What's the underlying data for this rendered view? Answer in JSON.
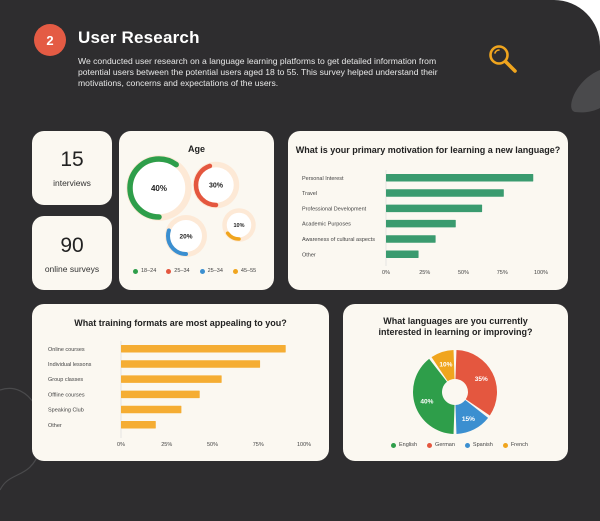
{
  "header": {
    "step": "2",
    "title": "User Research",
    "description": "We conducted user research on a language learning platforms to get detailed information from potential users between the potential users aged 18 to 55. This survey helped understand their motivations, concerns and expectations of the users."
  },
  "icons": {
    "research": "magnifier-icon"
  },
  "stats": {
    "interviews": {
      "value": "15",
      "label": "interviews"
    },
    "surveys": {
      "value": "90",
      "label": "online surveys"
    }
  },
  "age": {
    "title": "Age",
    "legend": [
      "18–24",
      "25–34",
      "25–34",
      "45–55"
    ],
    "bubbles": [
      {
        "label": "40%",
        "value": 40,
        "color": "#2e9e4a"
      },
      {
        "label": "30%",
        "value": 30,
        "color": "#e4573f"
      },
      {
        "label": "20%",
        "value": 20,
        "color": "#3b8fd0"
      },
      {
        "label": "10%",
        "value": 10,
        "color": "#f0a51e"
      }
    ]
  },
  "colors": {
    "green": "#2e9e4a",
    "red": "#e4573f",
    "blue": "#3b8fd0",
    "orange": "#f0a51e",
    "teal_bar": "#3a9b6f",
    "amber_bar": "#f5ad33",
    "background": "#2e2d2f",
    "card": "#fbf8f1"
  },
  "chart_data": [
    {
      "type": "bar",
      "title": "What is your primary motivation for learning a new language?",
      "categories": [
        "Personal Interest",
        "Travel",
        "Professional Development",
        "Academic Purposes",
        "Awareness of cultural aspects",
        "Other"
      ],
      "values": [
        95,
        76,
        62,
        45,
        32,
        21
      ],
      "xticks": [
        "0%",
        "25%",
        "50%",
        "75%",
        "100%"
      ],
      "xlim": [
        0,
        100
      ],
      "orientation": "horizontal"
    },
    {
      "type": "bar",
      "title": "What training formats are most appealing to you?",
      "categories": [
        "Online courses",
        "Individual lessons",
        "Group classes",
        "Offline courses",
        "Speaking Club",
        "Other"
      ],
      "values": [
        90,
        76,
        55,
        43,
        33,
        19
      ],
      "xticks": [
        "0%",
        "25%",
        "50%",
        "75%",
        "100%"
      ],
      "xlim": [
        0,
        100
      ],
      "orientation": "horizontal"
    },
    {
      "type": "pie",
      "title": "What languages are you currently interested in learning or improving?",
      "categories": [
        "English",
        "German",
        "Spanish",
        "French"
      ],
      "values": [
        40,
        35,
        15,
        10
      ],
      "labels": [
        "40%",
        "35%",
        "15%",
        "10%"
      ]
    }
  ]
}
